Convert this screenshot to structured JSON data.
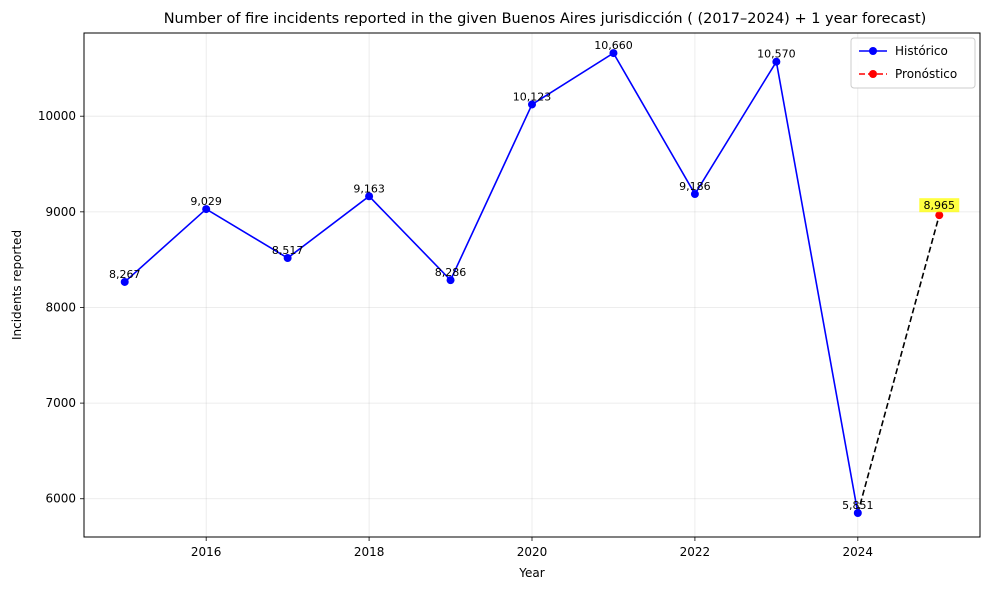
{
  "chart_data": {
    "type": "line",
    "title": "Number of fire incidents reported in the given Buenos Aires jurisdicción  ( (2017–2024)  + 1 year forecast)",
    "xlabel": "Year",
    "ylabel": "Incidents reported",
    "xlim": [
      2014.5,
      2025.5
    ],
    "ylim": [
      5600,
      10870
    ],
    "x_ticks": [
      2016,
      2018,
      2020,
      2022,
      2024
    ],
    "y_ticks": [
      6000,
      7000,
      8000,
      9000,
      10000
    ],
    "grid": true,
    "legend_position": "top-right",
    "series": [
      {
        "name": "Histórico",
        "color": "#0000ff",
        "line_style": "solid",
        "marker": "circle",
        "x": [
          2015,
          2016,
          2017,
          2018,
          2019,
          2020,
          2021,
          2022,
          2023,
          2024
        ],
        "y": [
          8267,
          9029,
          8517,
          9163,
          8286,
          10123,
          10660,
          9186,
          10570,
          5851
        ],
        "labels": [
          "8,267",
          "9,029",
          "8,517",
          "9,163",
          "8,286",
          "10,123",
          "10,660",
          "9,186",
          "10,570",
          "5,851"
        ]
      },
      {
        "name": "Pronóstico",
        "color": "#ff0000",
        "line_color": "#000000",
        "line_style": "dashed",
        "marker": "circle",
        "x": [
          2024,
          2025
        ],
        "y": [
          5851,
          8965
        ],
        "marker_x": [
          2025
        ],
        "marker_y": [
          8965
        ],
        "labels": [
          "8,965"
        ],
        "label_highlight": "#ffff00"
      }
    ]
  }
}
